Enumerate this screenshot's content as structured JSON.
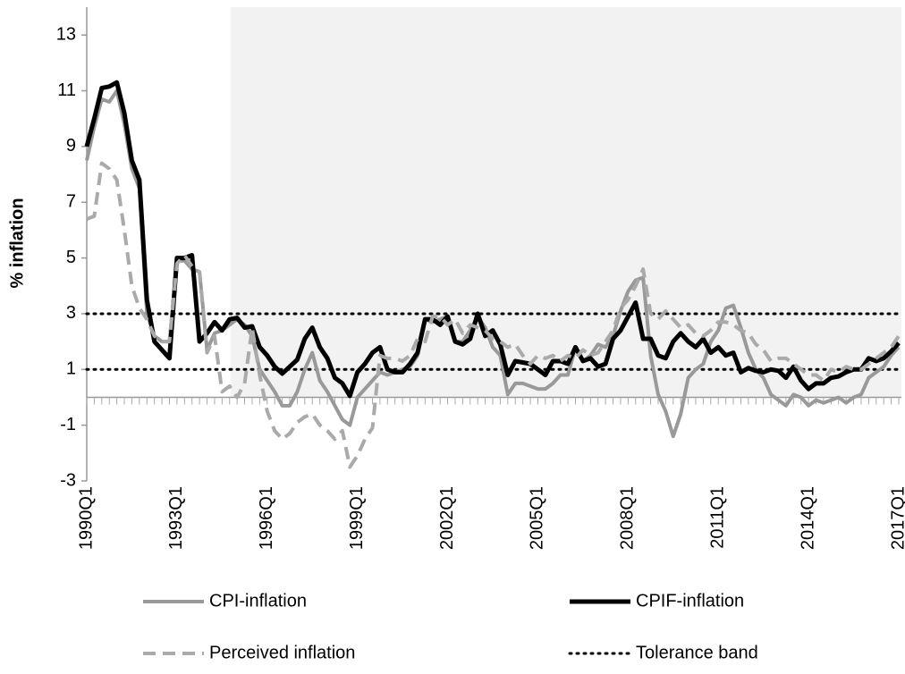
{
  "chart_data": {
    "type": "line",
    "y_label": "% inflation",
    "ylim": [
      -3,
      14
    ],
    "yticks": [
      -3,
      -1,
      1,
      3,
      5,
      7,
      9,
      11,
      13
    ],
    "categories": [
      "1990Q1",
      null,
      null,
      null,
      null,
      null,
      null,
      null,
      null,
      null,
      null,
      null,
      "1993Q1",
      null,
      null,
      null,
      null,
      null,
      null,
      null,
      null,
      null,
      null,
      null,
      "1996Q1",
      null,
      null,
      null,
      null,
      null,
      null,
      null,
      null,
      null,
      null,
      null,
      "1999Q1",
      null,
      null,
      null,
      null,
      null,
      null,
      null,
      null,
      null,
      null,
      null,
      "2002Q1",
      null,
      null,
      null,
      null,
      null,
      null,
      null,
      null,
      null,
      null,
      null,
      "2005Q1",
      null,
      null,
      null,
      null,
      null,
      null,
      null,
      null,
      null,
      null,
      null,
      "2008Q1",
      null,
      null,
      null,
      null,
      null,
      null,
      null,
      null,
      null,
      null,
      null,
      "2011Q1",
      null,
      null,
      null,
      null,
      null,
      null,
      null,
      null,
      null,
      null,
      null,
      "2014Q1",
      null,
      null,
      null,
      null,
      null,
      null,
      null,
      null,
      null,
      null,
      null,
      "2017Q1"
    ],
    "series": [
      {
        "name": "CPI-inflation",
        "color": "#999999",
        "dash": "solid",
        "width": 4,
        "values": [
          8.5,
          9.7,
          10.7,
          10.6,
          11.0,
          9.8,
          8.2,
          7.5,
          3.0,
          2.2,
          2.0,
          2.0,
          4.9,
          4.9,
          4.6,
          4.5,
          1.7,
          2.3,
          2.4,
          2.6,
          2.8,
          2.6,
          2.2,
          1.0,
          0.6,
          0.2,
          -0.3,
          -0.3,
          0.2,
          1.0,
          1.6,
          0.6,
          0.2,
          -0.3,
          -0.8,
          -1.0,
          0.0,
          0.3,
          0.6,
          0.9,
          0.8,
          0.9,
          1.0,
          1.1,
          1.5,
          2.8,
          2.7,
          2.8,
          2.9,
          2.0,
          2.0,
          2.4,
          2.9,
          2.5,
          1.8,
          1.5,
          0.1,
          0.5,
          0.5,
          0.4,
          0.3,
          0.3,
          0.5,
          0.8,
          0.8,
          1.8,
          1.3,
          1.5,
          1.9,
          1.8,
          2.2,
          3.1,
          3.8,
          4.2,
          4.3,
          1.5,
          0.1,
          -0.5,
          -1.4,
          -0.6,
          0.7,
          1.0,
          1.2,
          2.0,
          2.4,
          3.2,
          3.3,
          2.5,
          1.6,
          1.0,
          0.7,
          0.1,
          -0.1,
          -0.3,
          0.1,
          0.0,
          -0.3,
          -0.1,
          -0.2,
          -0.1,
          0.0,
          -0.2,
          0.0,
          0.1,
          0.7,
          0.9,
          1.1,
          1.5,
          1.8
        ]
      },
      {
        "name": "CPIF-inflation",
        "color": "#000000",
        "dash": "solid",
        "width": 5,
        "values": [
          9.0,
          10.0,
          11.1,
          11.15,
          11.3,
          10.2,
          8.5,
          7.8,
          3.5,
          2.0,
          1.7,
          1.4,
          5.0,
          5.0,
          5.1,
          2.0,
          2.3,
          2.7,
          2.4,
          2.8,
          2.85,
          2.5,
          2.55,
          1.8,
          1.5,
          1.1,
          0.85,
          1.1,
          1.35,
          2.1,
          2.5,
          1.8,
          1.4,
          0.7,
          0.5,
          0.05,
          0.9,
          1.2,
          1.6,
          1.8,
          1.0,
          0.9,
          0.9,
          1.2,
          1.6,
          2.8,
          2.8,
          2.6,
          2.9,
          2.0,
          1.9,
          2.1,
          3.0,
          2.2,
          2.4,
          1.9,
          0.8,
          1.3,
          1.25,
          1.2,
          1.0,
          0.8,
          1.3,
          1.3,
          1.2,
          1.8,
          1.3,
          1.4,
          1.1,
          1.2,
          2.1,
          2.4,
          2.9,
          3.4,
          2.1,
          2.1,
          1.5,
          1.4,
          2.0,
          2.3,
          2.0,
          1.8,
          2.1,
          1.6,
          1.8,
          1.5,
          1.6,
          0.9,
          1.05,
          0.95,
          0.9,
          1.0,
          0.95,
          0.7,
          1.1,
          0.6,
          0.3,
          0.5,
          0.5,
          0.7,
          0.75,
          0.9,
          1.0,
          1.0,
          1.4,
          1.3,
          1.4,
          1.65,
          1.95
        ]
      },
      {
        "name": "Perceived inflation",
        "color": "#aaaaaa",
        "dash": "dashed",
        "width": 4,
        "values": [
          6.4,
          6.5,
          8.4,
          8.2,
          7.8,
          6.0,
          4.0,
          3.2,
          2.8,
          2.2,
          2.0,
          2.0,
          4.8,
          5.1,
          4.7,
          4.5,
          1.6,
          2.2,
          0.2,
          0.4,
          0.0,
          0.5,
          2.5,
          0.8,
          -0.5,
          -1.2,
          -1.5,
          -1.3,
          -0.9,
          -0.7,
          -0.6,
          -1.0,
          -1.2,
          -1.5,
          -1.2,
          -2.5,
          -2.1,
          -1.5,
          -1.1,
          1.5,
          1.4,
          1.4,
          1.3,
          1.5,
          2.1,
          2.0,
          2.9,
          2.9,
          2.6,
          2.8,
          2.3,
          2.6,
          2.5,
          2.4,
          2.1,
          2.0,
          1.8,
          1.9,
          1.5,
          1.2,
          1.5,
          1.4,
          1.5,
          1.3,
          1.5,
          1.4,
          1.7,
          1.5,
          1.6,
          2.0,
          2.4,
          3.2,
          3.5,
          4.0,
          4.6,
          3.0,
          2.8,
          3.1,
          2.8,
          2.5,
          2.6,
          2.3,
          2.2,
          2.4,
          2.7,
          2.7,
          2.6,
          2.4,
          2.3,
          1.9,
          1.7,
          1.3,
          1.4,
          1.4,
          1.2,
          1.0,
          0.8,
          0.8,
          0.6,
          1.0,
          0.9,
          1.1,
          1.0,
          1.0,
          1.2,
          1.4,
          1.6,
          1.8,
          2.2
        ]
      }
    ],
    "tolerance_band": {
      "name": "Tolerance band",
      "color": "#000000",
      "dash": "dotted",
      "values": [
        1,
        3
      ]
    },
    "shading_color": "#f2f2f2"
  }
}
